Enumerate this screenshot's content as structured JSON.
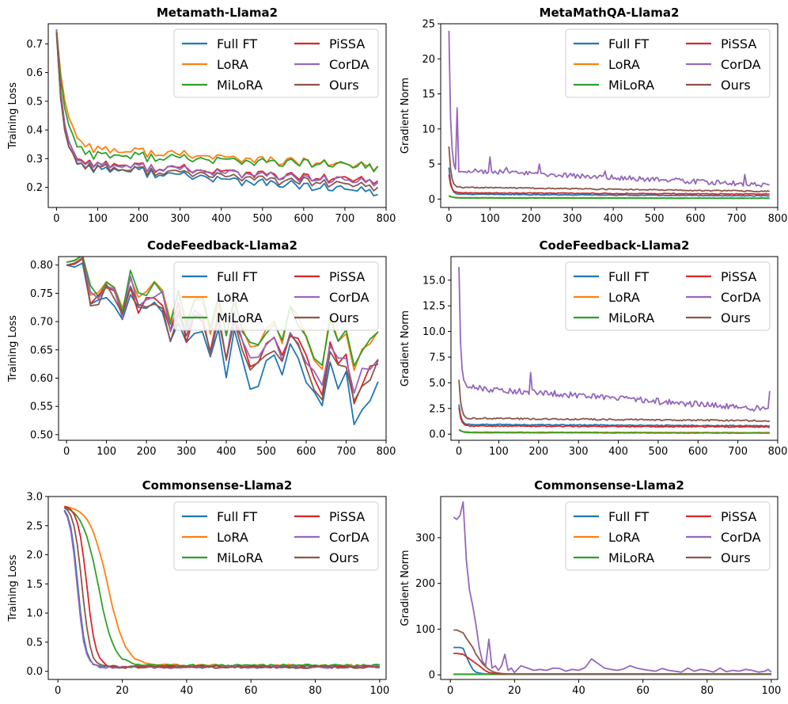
{
  "colors": {
    "Full FT": "#1f77b4",
    "LoRA": "#ff7f0e",
    "MiLoRA": "#2ca02c",
    "PiSSA": "#d62728",
    "CorDA": "#9467bd",
    "Ours": "#8c564b"
  },
  "chart_data": [
    {
      "type": "line",
      "title": "Metamath-Llama2",
      "xlabel": "",
      "ylabel": "Training Loss",
      "xlim": [
        -20,
        800
      ],
      "ylim": [
        0.13,
        0.77
      ],
      "xticks": [
        0,
        100,
        200,
        300,
        400,
        500,
        600,
        700,
        800
      ],
      "yticks": [
        0.2,
        0.3,
        0.4,
        0.5,
        0.6,
        0.7
      ],
      "tick_labels_x": [
        "0",
        "100",
        "200",
        "300",
        "400",
        "500",
        "600",
        "700",
        "800"
      ],
      "tick_labels_y": [
        "0.2",
        "0.3",
        "0.4",
        "0.5",
        "0.6",
        "0.7"
      ],
      "legend": [
        "Full FT",
        "LoRA",
        "MiLoRA",
        "PiSSA",
        "CorDA",
        "Ours"
      ],
      "legend_position": "upper-right",
      "series": [
        {
          "name": "Full FT",
          "style": "decay",
          "start": 0.74,
          "level": 0.28,
          "end": 0.18,
          "tau": 15,
          "noise": 0.02
        },
        {
          "name": "LoRA",
          "style": "decay",
          "start": 0.75,
          "level": 0.34,
          "end": 0.27,
          "tau": 22,
          "noise": 0.018
        },
        {
          "name": "MiLoRA",
          "style": "decay",
          "start": 0.75,
          "level": 0.32,
          "end": 0.27,
          "tau": 20,
          "noise": 0.02
        },
        {
          "name": "PiSSA",
          "style": "decay",
          "start": 0.75,
          "level": 0.29,
          "end": 0.22,
          "tau": 16,
          "noise": 0.018
        },
        {
          "name": "CorDA",
          "style": "decay",
          "start": 0.75,
          "level": 0.29,
          "end": 0.215,
          "tau": 16,
          "noise": 0.018
        },
        {
          "name": "Ours",
          "style": "decay",
          "start": 0.74,
          "level": 0.28,
          "end": 0.2,
          "tau": 15,
          "noise": 0.018
        }
      ]
    },
    {
      "type": "line",
      "title": "MetaMathQA-Llama2",
      "xlabel": "",
      "ylabel": "Gradient Norm",
      "xlim": [
        -20,
        800
      ],
      "ylim": [
        -1.2,
        25
      ],
      "xticks": [
        0,
        100,
        200,
        300,
        400,
        500,
        600,
        700,
        800
      ],
      "yticks": [
        0,
        5,
        10,
        15,
        20,
        25
      ],
      "tick_labels_x": [
        "0",
        "100",
        "200",
        "300",
        "400",
        "500",
        "600",
        "700",
        "800"
      ],
      "tick_labels_y": [
        "0",
        "5",
        "10",
        "15",
        "20",
        "25"
      ],
      "legend": [
        "Full FT",
        "LoRA",
        "MiLoRA",
        "PiSSA",
        "CorDA",
        "Ours"
      ],
      "legend_position": "upper-right",
      "series": [
        {
          "name": "Full FT",
          "style": "spike",
          "peak": 4.5,
          "level": 0.7,
          "end": 0.45,
          "tau": 5,
          "noise": 0.05
        },
        {
          "name": "LoRA",
          "style": "spike",
          "peak": 0.4,
          "level": 0.2,
          "end": 0.15,
          "tau": 8,
          "noise": 0.02
        },
        {
          "name": "MiLoRA",
          "style": "spike",
          "peak": 0.5,
          "level": 0.15,
          "end": 0.1,
          "tau": 8,
          "noise": 0.02
        },
        {
          "name": "PiSSA",
          "style": "spike",
          "peak": 3.5,
          "level": 0.9,
          "end": 0.7,
          "tau": 5,
          "noise": 0.06
        },
        {
          "name": "CorDA",
          "style": "spike",
          "peak": 24,
          "level": 4.2,
          "end": 2.0,
          "tau": 4,
          "noise": 0.35,
          "spikes": [
            [
              20,
              13
            ],
            [
              100,
              6
            ],
            [
              140,
              4.5
            ],
            [
              220,
              5
            ],
            [
              380,
              4
            ],
            [
              720,
              3.5
            ]
          ]
        },
        {
          "name": "Ours",
          "style": "spike",
          "peak": 7.5,
          "level": 1.7,
          "end": 1.1,
          "tau": 5,
          "noise": 0.08
        }
      ]
    },
    {
      "type": "line",
      "title": "CodeFeedback-Llama2",
      "xlabel": "",
      "ylabel": "Training Loss",
      "xlim": [
        -20,
        800
      ],
      "ylim": [
        0.49,
        0.815
      ],
      "xticks": [
        0,
        100,
        200,
        300,
        400,
        500,
        600,
        700,
        800
      ],
      "yticks": [
        0.5,
        0.55,
        0.6,
        0.65,
        0.7,
        0.75,
        0.8
      ],
      "tick_labels_x": [
        "0",
        "100",
        "200",
        "300",
        "400",
        "500",
        "600",
        "700",
        "800"
      ],
      "tick_labels_y": [
        "0.50",
        "0.55",
        "0.60",
        "0.65",
        "0.70",
        "0.75",
        "0.80"
      ],
      "legend": [
        "Full FT",
        "LoRA",
        "MiLoRA",
        "PiSSA",
        "CorDA",
        "Ours"
      ],
      "legend_position": "upper-right",
      "series": [
        {
          "name": "Full FT",
          "style": "zigzag",
          "start": 0.8,
          "end": 0.56,
          "noise": 0.03,
          "seed": 3
        },
        {
          "name": "LoRA",
          "style": "zigzag",
          "start": 0.805,
          "end": 0.65,
          "noise": 0.02,
          "seed": 5
        },
        {
          "name": "MiLoRA",
          "style": "zigzag",
          "start": 0.805,
          "end": 0.65,
          "noise": 0.022,
          "seed": 7
        },
        {
          "name": "PiSSA",
          "style": "zigzag",
          "start": 0.8,
          "end": 0.6,
          "noise": 0.025,
          "seed": 11
        },
        {
          "name": "CorDA",
          "style": "zigzag",
          "start": 0.8,
          "end": 0.61,
          "noise": 0.025,
          "seed": 13
        },
        {
          "name": "Ours",
          "style": "zigzag",
          "start": 0.8,
          "end": 0.59,
          "noise": 0.025,
          "seed": 17
        }
      ]
    },
    {
      "type": "line",
      "title": "CodeFeedback-Llama2",
      "xlabel": "",
      "ylabel": "Gradient Norm",
      "xlim": [
        -20,
        800
      ],
      "ylim": [
        -0.6,
        17.3
      ],
      "xticks": [
        0,
        100,
        200,
        300,
        400,
        500,
        600,
        700,
        800
      ],
      "yticks": [
        0,
        2.5,
        5,
        7.5,
        10,
        12.5,
        15
      ],
      "tick_labels_x": [
        "0",
        "100",
        "200",
        "300",
        "400",
        "500",
        "600",
        "700",
        "800"
      ],
      "tick_labels_y": [
        "0.0",
        "2.5",
        "5.0",
        "7.5",
        "10.0",
        "12.5",
        "15.0"
      ],
      "legend": [
        "Full FT",
        "LoRA",
        "MiLoRA",
        "PiSSA",
        "CorDA",
        "Ours"
      ],
      "legend_position": "upper-right",
      "series": [
        {
          "name": "Full FT",
          "style": "spike",
          "peak": 2.9,
          "level": 0.95,
          "end": 0.8,
          "tau": 5,
          "noise": 0.05
        },
        {
          "name": "LoRA",
          "style": "spike",
          "peak": 0.4,
          "level": 0.2,
          "end": 0.15,
          "tau": 8,
          "noise": 0.02
        },
        {
          "name": "MiLoRA",
          "style": "spike",
          "peak": 0.45,
          "level": 0.15,
          "end": 0.1,
          "tau": 8,
          "noise": 0.02
        },
        {
          "name": "PiSSA",
          "style": "spike",
          "peak": 2.6,
          "level": 0.8,
          "end": 0.7,
          "tau": 5,
          "noise": 0.05
        },
        {
          "name": "CorDA",
          "style": "spike",
          "peak": 16.3,
          "level": 4.6,
          "end": 2.4,
          "tau": 4,
          "noise": 0.3,
          "spikes": [
            [
              10,
              8
            ],
            [
              180,
              6
            ],
            [
              380,
              3.5
            ],
            [
              780,
              4.2
            ]
          ]
        },
        {
          "name": "Ours",
          "style": "spike",
          "peak": 5.3,
          "level": 1.55,
          "end": 1.3,
          "tau": 5,
          "noise": 0.08
        }
      ]
    },
    {
      "type": "line",
      "title": "Commonsense-Llama2",
      "xlabel": "",
      "ylabel": "Training Loss",
      "xlim": [
        -3,
        102
      ],
      "ylim": [
        -0.14,
        3.0
      ],
      "xticks": [
        0,
        20,
        40,
        60,
        80,
        100
      ],
      "yticks": [
        0,
        0.5,
        1,
        1.5,
        2,
        2.5,
        3
      ],
      "tick_labels_x": [
        "0",
        "20",
        "40",
        "60",
        "80",
        "100"
      ],
      "tick_labels_y": [
        "0.0",
        "0.5",
        "1.0",
        "1.5",
        "2.0",
        "2.5",
        "3.0"
      ],
      "legend": [
        "Full FT",
        "LoRA",
        "MiLoRA",
        "PiSSA",
        "CorDA",
        "Ours"
      ],
      "legend_position": "upper-right",
      "series": [
        {
          "name": "Full FT",
          "style": "sigmoid",
          "start": 2.85,
          "end": 0.08,
          "mid": 6.2,
          "width": 1.2,
          "noise": 0.01
        },
        {
          "name": "LoRA",
          "style": "sigmoid",
          "start": 2.85,
          "end": 0.1,
          "mid": 15.5,
          "width": 2.8,
          "noise": 0.01
        },
        {
          "name": "MiLoRA",
          "style": "sigmoid",
          "start": 2.85,
          "end": 0.1,
          "mid": 12.5,
          "width": 2.5,
          "noise": 0.01
        },
        {
          "name": "PiSSA",
          "style": "sigmoid",
          "start": 2.85,
          "end": 0.08,
          "mid": 9.0,
          "width": 1.4,
          "noise": 0.01
        },
        {
          "name": "CorDA",
          "style": "sigmoid",
          "start": 2.85,
          "end": 0.07,
          "mid": 6.0,
          "width": 1.2,
          "noise": 0.01
        },
        {
          "name": "Ours",
          "style": "sigmoid",
          "start": 2.85,
          "end": 0.07,
          "mid": 7.5,
          "width": 1.3,
          "noise": 0.01
        }
      ]
    },
    {
      "type": "line",
      "title": "Commonsense-Llama2",
      "xlabel": "",
      "ylabel": "Gradient Norm",
      "xlim": [
        -3,
        102
      ],
      "ylim": [
        -10,
        390
      ],
      "xticks": [
        0,
        20,
        40,
        60,
        80,
        100
      ],
      "yticks": [
        0,
        100,
        200,
        300
      ],
      "tick_labels_x": [
        "0",
        "20",
        "40",
        "60",
        "80",
        "100"
      ],
      "tick_labels_y": [
        "0",
        "100",
        "200",
        "300"
      ],
      "legend": [
        "Full FT",
        "LoRA",
        "MiLoRA",
        "PiSSA",
        "CorDA",
        "Ours"
      ],
      "legend_position": "upper-right",
      "series": [
        {
          "name": "Full FT",
          "style": "pts",
          "x": [
            1,
            2,
            3,
            4,
            5,
            6,
            7,
            8,
            9,
            10,
            12,
            15,
            20,
            30,
            50,
            70,
            100
          ],
          "y": [
            60,
            60,
            60,
            58,
            40,
            25,
            12,
            6,
            4,
            3,
            2,
            2,
            1.5,
            1,
            1,
            1,
            1
          ]
        },
        {
          "name": "LoRA",
          "style": "pts",
          "x": [
            1,
            5,
            10,
            20,
            40,
            60,
            80,
            100
          ],
          "y": [
            2,
            2,
            2,
            2,
            2,
            2,
            2,
            2
          ]
        },
        {
          "name": "MiLoRA",
          "style": "pts",
          "x": [
            1,
            5,
            10,
            20,
            40,
            60,
            80,
            100
          ],
          "y": [
            1,
            1,
            1,
            1,
            1,
            1,
            1,
            1
          ]
        },
        {
          "name": "PiSSA",
          "style": "pts",
          "x": [
            1,
            2,
            3,
            4,
            5,
            6,
            7,
            8,
            9,
            10,
            11,
            12,
            14,
            16,
            18,
            20,
            30,
            50,
            100
          ],
          "y": [
            47,
            47,
            46,
            45,
            40,
            35,
            30,
            25,
            20,
            14,
            9,
            5,
            3,
            2,
            2,
            2,
            2,
            2,
            2
          ]
        },
        {
          "name": "CorDA",
          "style": "pts",
          "x": [
            1,
            2,
            3,
            4,
            5,
            6,
            7,
            8,
            9,
            10,
            11,
            12,
            13,
            14,
            15,
            16,
            17,
            18,
            19,
            20,
            22,
            24,
            26,
            28,
            30,
            32,
            34,
            36,
            38,
            40,
            42,
            44,
            46,
            48,
            50,
            52,
            54,
            56,
            58,
            60,
            62,
            64,
            66,
            68,
            70,
            72,
            74,
            76,
            78,
            80,
            82,
            84,
            86,
            88,
            90,
            92,
            94,
            96,
            98,
            99,
            100
          ],
          "y": [
            345,
            340,
            348,
            378,
            250,
            185,
            150,
            110,
            60,
            30,
            20,
            78,
            15,
            20,
            10,
            20,
            45,
            10,
            15,
            5,
            20,
            15,
            10,
            12,
            10,
            15,
            14,
            8,
            12,
            10,
            16,
            35,
            25,
            15,
            12,
            10,
            13,
            20,
            15,
            12,
            10,
            8,
            14,
            10,
            8,
            6,
            15,
            8,
            12,
            10,
            6,
            15,
            7,
            10,
            8,
            12,
            10,
            6,
            8,
            12,
            6
          ]
        },
        {
          "name": "Ours",
          "style": "pts",
          "x": [
            1,
            2,
            3,
            4,
            5,
            6,
            7,
            8,
            9,
            10,
            11,
            12,
            13,
            14,
            16,
            18,
            20,
            25,
            30,
            50,
            100
          ],
          "y": [
            98,
            98,
            95,
            92,
            80,
            70,
            60,
            45,
            35,
            25,
            18,
            12,
            8,
            5,
            3,
            2,
            2,
            2,
            2,
            2,
            2
          ]
        }
      ]
    }
  ]
}
